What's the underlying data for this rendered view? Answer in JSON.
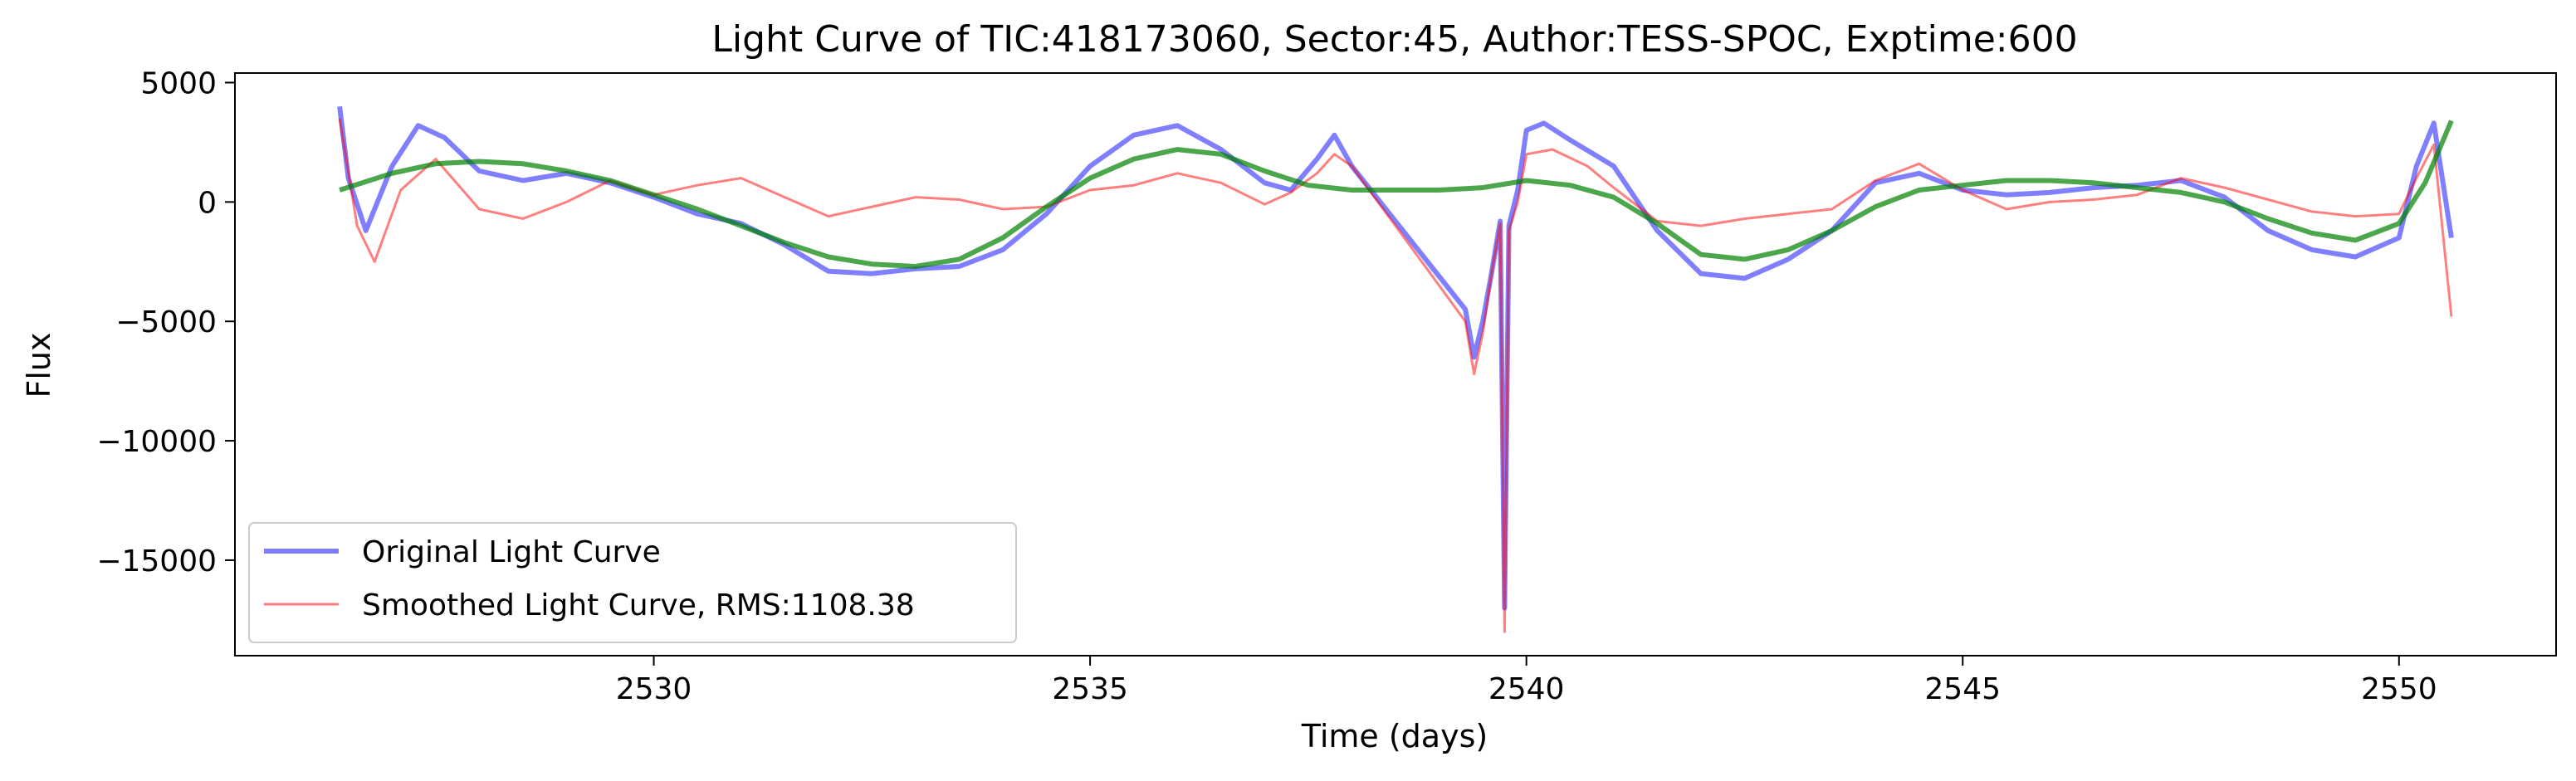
{
  "chart_data": {
    "type": "line",
    "title": "Light Curve of TIC:418173060, Sector:45, Author:TESS-SPOC, Exptime:600",
    "xlabel": "Time (days)",
    "ylabel": "Flux",
    "xlim": [
      2525.2,
      2551.8
    ],
    "ylim": [
      -19000,
      5400
    ],
    "xticks": [
      2530,
      2535,
      2540,
      2545,
      2550
    ],
    "yticks": [
      5000,
      0,
      -5000,
      -10000,
      -15000
    ],
    "x_tick_labels": [
      "2530",
      "2535",
      "2540",
      "2545",
      "2550"
    ],
    "y_tick_labels": [
      "5000",
      "0",
      "−5000",
      "−10000",
      "−15000"
    ],
    "grid": false,
    "legend_position": "lower-left",
    "series": [
      {
        "name": "Original Light Curve",
        "color": "#0000ff",
        "opacity": 0.5,
        "x": [
          2526.4,
          2526.5,
          2526.7,
          2527.0,
          2527.3,
          2527.6,
          2528.0,
          2528.5,
          2529.0,
          2529.5,
          2530.0,
          2530.5,
          2531.0,
          2531.5,
          2532.0,
          2532.5,
          2533.0,
          2533.5,
          2534.0,
          2534.5,
          2535.0,
          2535.5,
          2536.0,
          2536.5,
          2537.0,
          2537.3,
          2537.6,
          2537.8,
          2538.0,
          2539.3,
          2539.4,
          2539.5,
          2539.6,
          2539.7,
          2539.75,
          2539.8,
          2539.9,
          2540.0,
          2540.2,
          2540.5,
          2541.0,
          2541.5,
          2542.0,
          2542.5,
          2543.0,
          2543.5,
          2544.0,
          2544.5,
          2545.0,
          2545.5,
          2546.0,
          2546.5,
          2547.0,
          2547.5,
          2548.0,
          2548.5,
          2549.0,
          2549.5,
          2550.0,
          2550.2,
          2550.4,
          2550.6
        ],
        "y": [
          4000,
          1000,
          -1200,
          1500,
          3200,
          2700,
          1300,
          900,
          1200,
          800,
          200,
          -500,
          -900,
          -1800,
          -2900,
          -3000,
          -2800,
          -2700,
          -2000,
          -500,
          1500,
          2800,
          3200,
          2200,
          800,
          500,
          1800,
          2800,
          1500,
          -4500,
          -6500,
          -5000,
          -3000,
          -800,
          -17000,
          -1000,
          500,
          3000,
          3300,
          2600,
          1500,
          -1200,
          -3000,
          -3200,
          -2400,
          -1200,
          800,
          1200,
          500,
          300,
          400,
          600,
          700,
          900,
          200,
          -1200,
          -2000,
          -2300,
          -1500,
          1500,
          3300,
          -1500
        ]
      },
      {
        "name": "Smoothed Light Curve, RMS:1108.38",
        "color": "#ff0000",
        "opacity": 0.5,
        "x": [
          2526.4,
          2526.6,
          2526.8,
          2527.1,
          2527.5,
          2528.0,
          2528.5,
          2529.0,
          2529.5,
          2530.0,
          2530.5,
          2531.0,
          2531.5,
          2532.0,
          2532.5,
          2533.0,
          2533.5,
          2534.0,
          2534.5,
          2535.0,
          2535.5,
          2536.0,
          2536.5,
          2537.0,
          2537.3,
          2537.6,
          2537.8,
          2538.0,
          2539.3,
          2539.4,
          2539.5,
          2539.6,
          2539.7,
          2539.75,
          2539.8,
          2539.9,
          2540.0,
          2540.3,
          2540.7,
          2541.0,
          2541.5,
          2542.0,
          2542.5,
          2543.0,
          2543.5,
          2544.0,
          2544.5,
          2545.0,
          2545.5,
          2546.0,
          2546.5,
          2547.0,
          2547.5,
          2548.0,
          2548.5,
          2549.0,
          2549.5,
          2550.0,
          2550.2,
          2550.4,
          2550.6
        ],
        "y": [
          3500,
          -1000,
          -2500,
          500,
          1800,
          -300,
          -700,
          0,
          900,
          300,
          700,
          1000,
          200,
          -600,
          -200,
          200,
          100,
          -300,
          -200,
          500,
          700,
          1200,
          800,
          -100,
          400,
          1200,
          2000,
          1500,
          -5000,
          -7200,
          -5500,
          -3000,
          -900,
          -18000,
          -1200,
          0,
          2000,
          2200,
          1500,
          600,
          -800,
          -1000,
          -700,
          -500,
          -300,
          900,
          1600,
          500,
          -300,
          0,
          100,
          300,
          1000,
          600,
          100,
          -400,
          -600,
          -500,
          1000,
          2400,
          -4800
        ]
      },
      {
        "name": "",
        "color": "#008000",
        "opacity": 0.7,
        "x": [
          2526.4,
          2527.0,
          2527.5,
          2528.0,
          2528.5,
          2529.0,
          2529.5,
          2530.0,
          2530.5,
          2531.0,
          2531.5,
          2532.0,
          2532.5,
          2533.0,
          2533.5,
          2534.0,
          2534.5,
          2535.0,
          2535.5,
          2536.0,
          2536.5,
          2537.0,
          2537.5,
          2538.0,
          2538.5,
          2539.0,
          2539.5,
          2540.0,
          2540.5,
          2541.0,
          2541.5,
          2542.0,
          2542.5,
          2543.0,
          2543.5,
          2544.0,
          2544.5,
          2545.0,
          2545.5,
          2546.0,
          2546.5,
          2547.0,
          2547.5,
          2548.0,
          2548.5,
          2549.0,
          2549.5,
          2550.0,
          2550.3,
          2550.6
        ],
        "y": [
          500,
          1200,
          1600,
          1700,
          1600,
          1300,
          900,
          300,
          -300,
          -1000,
          -1700,
          -2300,
          -2600,
          -2700,
          -2400,
          -1500,
          -200,
          1000,
          1800,
          2200,
          2000,
          1300,
          700,
          500,
          500,
          500,
          600,
          900,
          700,
          200,
          -900,
          -2200,
          -2400,
          -2000,
          -1200,
          -200,
          500,
          700,
          900,
          900,
          800,
          600,
          400,
          0,
          -700,
          -1300,
          -1600,
          -900,
          800,
          3400
        ]
      }
    ]
  }
}
